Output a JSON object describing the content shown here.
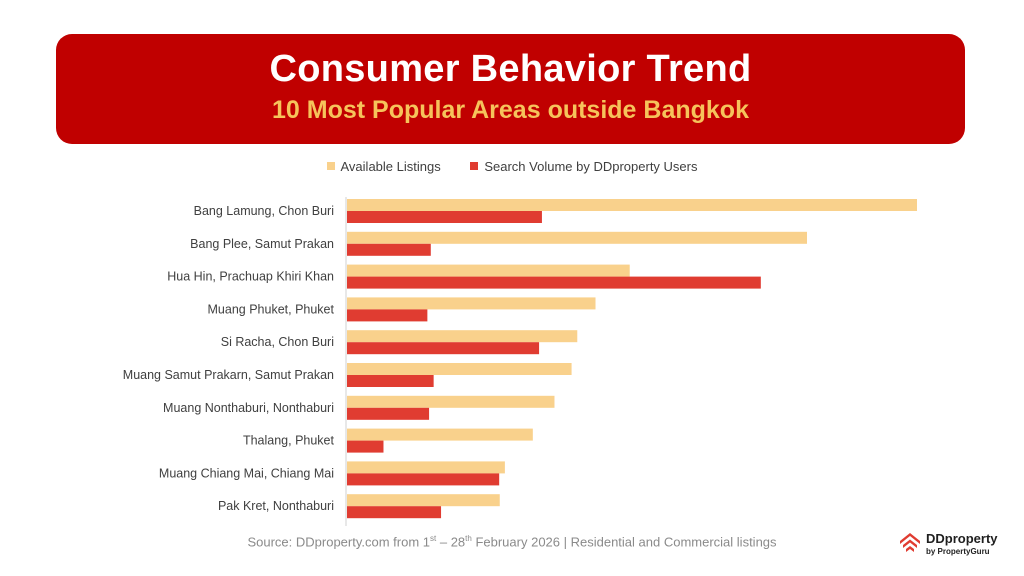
{
  "header": {
    "title": "Consumer Behavior Trend",
    "subtitle": "10 Most Popular Areas outside Bangkok"
  },
  "colors": {
    "banner": "#c00000",
    "subtitle": "#f6c35b",
    "available": "#f9d18c",
    "search": "#e03c31"
  },
  "source": {
    "prefix": "Source: DDproperty.com from 1",
    "sup1": "st",
    "middle": " – 28",
    "sup2": "th",
    "suffix": " February 2026 | Residential and Commercial listings"
  },
  "logo": {
    "name": "DDproperty",
    "tag": "by PropertyGuru",
    "icon": "ddproperty-house-icon"
  },
  "chart_data": {
    "type": "bar",
    "orientation": "horizontal",
    "categories": [
      "Bang Lamung, Chon Buri",
      "Bang Plee, Samut Prakan",
      "Hua Hin, Prachuap Khiri Khan",
      "Muang Phuket, Phuket",
      "Si Racha, Chon Buri",
      "Muang Samut Prakarn, Samut Prakan",
      "Muang Nonthaburi, Nonthaburi",
      "Thalang, Phuket",
      "Muang Chiang Mai, Chiang Mai",
      "Pak Kret, Nonthaburi"
    ],
    "series": [
      {
        "name": "Available Listings",
        "values": [
          100,
          80.7,
          49.6,
          43.6,
          40.4,
          39.4,
          36.4,
          32.6,
          27.7,
          26.8
        ]
      },
      {
        "name": "Search Volume by DDproperty Users",
        "values": [
          34.2,
          14.7,
          72.6,
          14.1,
          33.7,
          15.2,
          14.4,
          6.4,
          26.7,
          16.5
        ]
      }
    ],
    "xlim": [
      0,
      100
    ],
    "grid": false,
    "legend": "top-center",
    "axis_labels": "hidden"
  }
}
